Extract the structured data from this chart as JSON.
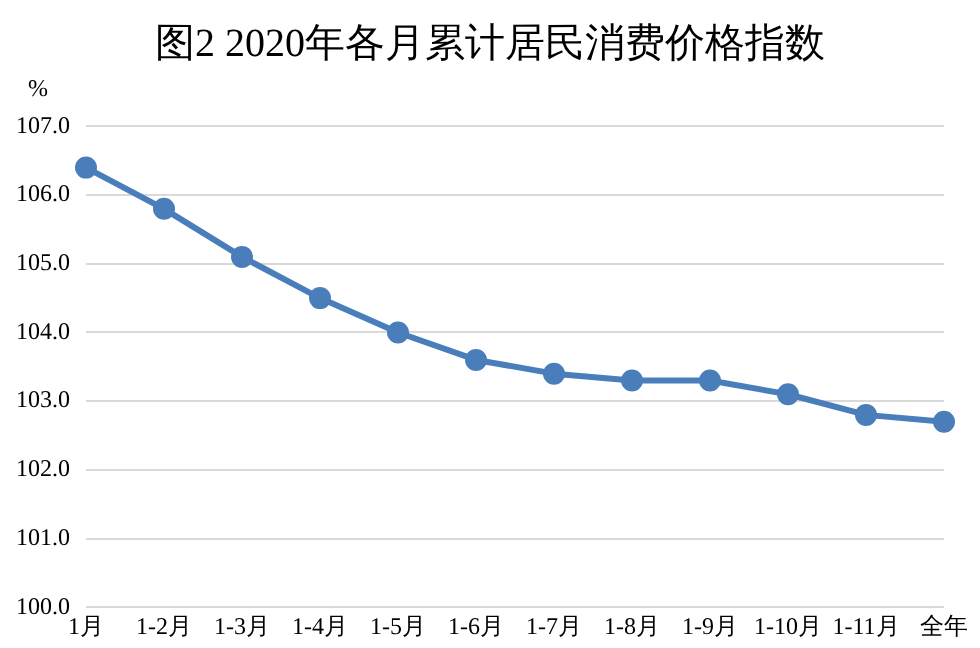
{
  "chart_data": {
    "type": "line",
    "title": "图2  2020年各月累计居民消费价格指数",
    "ylabel": "%",
    "categories": [
      "1月",
      "1-2月",
      "1-3月",
      "1-4月",
      "1-5月",
      "1-6月",
      "1-7月",
      "1-8月",
      "1-9月",
      "1-10月",
      "1-11月",
      "全年"
    ],
    "series": [
      {
        "color": "#4a7ebb",
        "values": [
          106.4,
          105.8,
          105.1,
          104.5,
          104.0,
          103.6,
          103.4,
          103.3,
          103.3,
          103.1,
          102.8,
          102.7
        ]
      }
    ],
    "ylim": [
      100,
      107
    ],
    "yticks": [
      {
        "value": 100,
        "label": "100.0"
      },
      {
        "value": 101,
        "label": "101.0"
      },
      {
        "value": 102,
        "label": "102.0"
      },
      {
        "value": 103,
        "label": "103.0"
      },
      {
        "value": 104,
        "label": "104.0"
      },
      {
        "value": 105,
        "label": "105.0"
      },
      {
        "value": 106,
        "label": "106.0"
      },
      {
        "value": 107,
        "label": "107.0"
      }
    ],
    "grid": "y",
    "legend": false,
    "marker": "circle",
    "line_style": "solid"
  }
}
